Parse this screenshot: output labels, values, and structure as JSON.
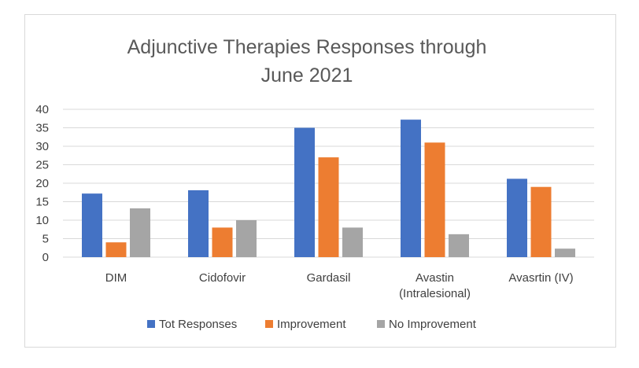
{
  "chart_data": {
    "type": "bar",
    "title": [
      "Adjunctive Therapies Responses through",
      "June 2021"
    ],
    "categories": [
      [
        "DIM"
      ],
      [
        "Cidofovir"
      ],
      [
        "Gardasil"
      ],
      [
        "Avastin",
        "(Intralesional)"
      ],
      [
        "Avasrtin (IV)"
      ]
    ],
    "series": [
      {
        "name": "Tot Responses",
        "color": "#4472c4",
        "values": [
          17.2,
          18.1,
          35,
          37.2,
          21.2
        ]
      },
      {
        "name": "Improvement",
        "color": "#ed7d31",
        "values": [
          4,
          8,
          27,
          31,
          19
        ]
      },
      {
        "name": "No Improvement",
        "color": "#a5a5a5",
        "values": [
          13.2,
          10,
          8,
          6.2,
          2.3
        ]
      }
    ],
    "ylim": [
      0,
      40
    ],
    "yticks": [
      0,
      5,
      10,
      15,
      20,
      25,
      30,
      35,
      40
    ],
    "grid": true,
    "legend_position": "bottom"
  }
}
